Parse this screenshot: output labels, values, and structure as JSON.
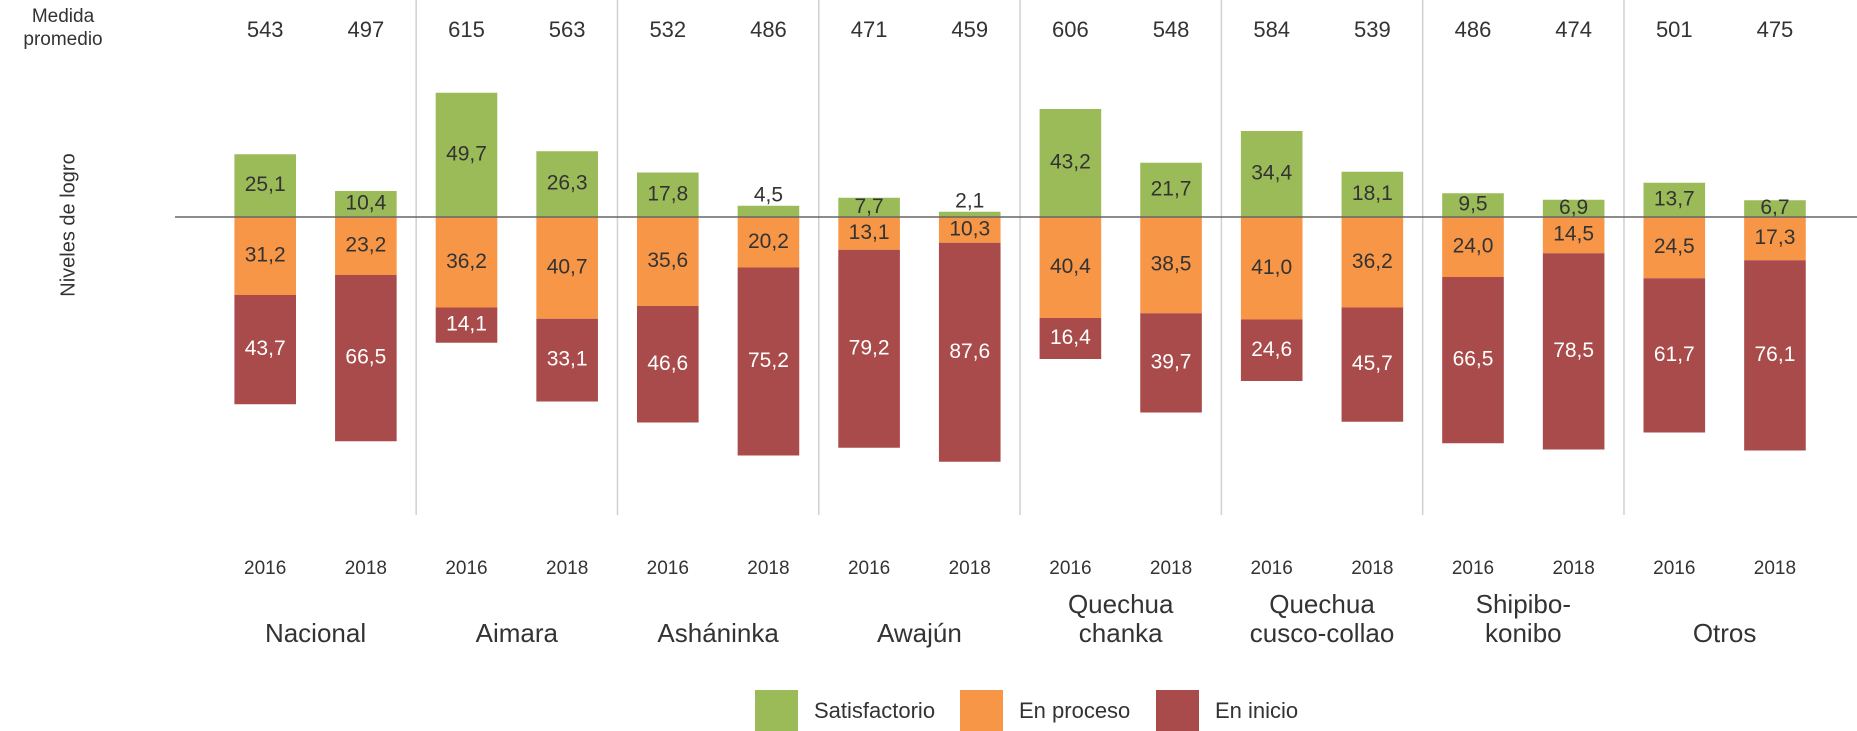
{
  "chart_data": {
    "type": "diverging-stacked-bar",
    "y_axis_label": "Niveles de logro",
    "means_label": [
      "Medida",
      "promedio"
    ],
    "means": [
      543,
      497,
      615,
      563,
      532,
      486,
      471,
      459,
      606,
      548,
      584,
      539,
      486,
      474,
      501,
      475
    ],
    "categories": [
      "2016",
      "2018",
      "2016",
      "2018",
      "2016",
      "2018",
      "2016",
      "2018",
      "2016",
      "2018",
      "2016",
      "2018",
      "2016",
      "2018",
      "2016",
      "2018"
    ],
    "groups": [
      [
        "Nacional"
      ],
      [
        "Aimara"
      ],
      [
        "Asháninka"
      ],
      [
        "Awajún"
      ],
      [
        "Quechua",
        "chanka"
      ],
      [
        "Quechua",
        "cusco-collao"
      ],
      [
        "Shipibo-",
        "konibo"
      ],
      [
        "Otros"
      ]
    ],
    "series": [
      {
        "name": "Satisfactorio",
        "color": "#9bbb59",
        "values": [
          25.1,
          10.4,
          49.7,
          26.3,
          17.8,
          4.5,
          7.7,
          2.1,
          43.2,
          21.7,
          34.4,
          18.1,
          9.5,
          6.9,
          13.7,
          6.7
        ],
        "value_labels": [
          "25,1",
          "10,4",
          "49,7",
          "26,3",
          "17,8",
          "4,5",
          "7,7",
          "2,1",
          "43,2",
          "21,7",
          "34,4",
          "18,1",
          "9,5",
          "6,9",
          "13,7",
          "6,7"
        ]
      },
      {
        "name": "En proceso",
        "color": "#f79646",
        "values": [
          31.2,
          23.2,
          36.2,
          40.7,
          35.6,
          20.2,
          13.1,
          10.3,
          40.4,
          38.5,
          41.0,
          36.2,
          24.0,
          14.5,
          24.5,
          17.3
        ],
        "value_labels": [
          "31,2",
          "23,2",
          "36,2",
          "40,7",
          "35,6",
          "20,2",
          "13,1",
          "10,3",
          "40,4",
          "38,5",
          "41,0",
          "36,2",
          "24,0",
          "14,5",
          "24,5",
          "17,3"
        ]
      },
      {
        "name": "En inicio",
        "color": "#a94b4b",
        "values": [
          43.7,
          66.5,
          14.1,
          33.1,
          46.6,
          75.2,
          79.2,
          87.6,
          16.4,
          39.7,
          24.6,
          45.7,
          66.5,
          78.5,
          61.7,
          76.1
        ],
        "value_labels": [
          "43,7",
          "66,5",
          "14,1",
          "33,1",
          "46,6",
          "75,2",
          "79,2",
          "87,6",
          "16,4",
          "39,7",
          "24,6",
          "45,7",
          "66,5",
          "78,5",
          "61,7",
          "76,1"
        ]
      }
    ]
  }
}
